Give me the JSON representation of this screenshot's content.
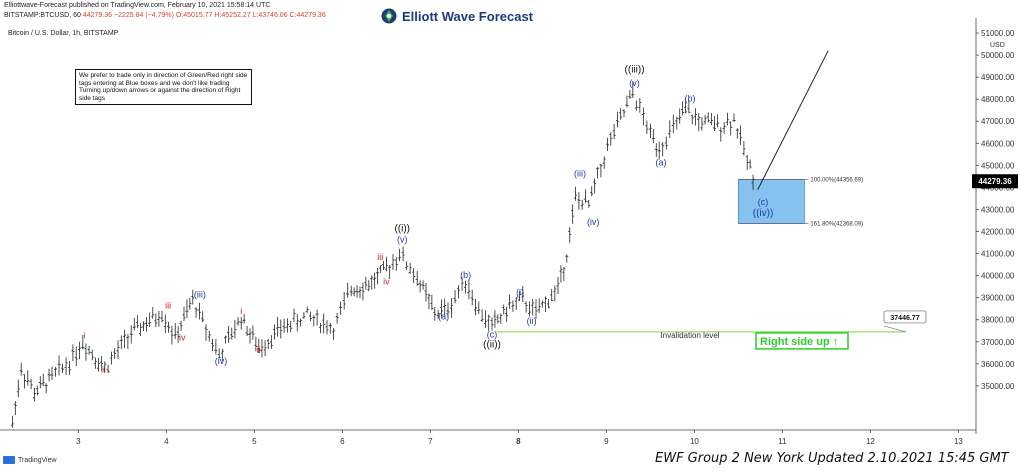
{
  "header": {
    "line1": "Elliottwave-Forecast published on TradingView.com, February 10, 2021 15:58:14 UTC",
    "line2_prefix": "BITSTAMP:BTCUSD, 60",
    "line2_values": "44279.36 −2225.84 (−4.79%) O:45015.77 H:45252.27 L:43746.06 C:44279.36"
  },
  "logo": {
    "text": "Elliott Wave Forecast",
    "icon": "ewf-logo-icon"
  },
  "chart_title": "Bitcoin / U.S. Dollar, 1h, BITSTAMP",
  "note": "We prefer to trade only in direction of Green/Red right side tags entering at Blue boxes and we don't like trading Turning up/down arrows or against the direction of Right side tags",
  "footer": "EWF Group 2 New York Updated 2.10.2021 15:45 GMT",
  "tradingview_label": "TradingView",
  "chart_data": {
    "type": "line",
    "symbol": "BTCUSD",
    "ylabel": "USD",
    "ylim": [
      33000,
      51500
    ],
    "xlim": [
      2.2,
      13.2
    ],
    "x_ticks": [
      "3",
      "4",
      "5",
      "6",
      "7",
      "8",
      "9",
      "10",
      "11",
      "12",
      "13"
    ],
    "y_ticks": [
      "35000.00",
      "36000.00",
      "37000.00",
      "38000.00",
      "39000.00",
      "40000.00",
      "41000.00",
      "42000.00",
      "43000.00",
      "44000.00",
      "45000.00",
      "46000.00",
      "47000.00",
      "48000.00",
      "49000.00",
      "50000.00",
      "51000.00"
    ],
    "price_path": [
      [
        2.25,
        33300
      ],
      [
        2.35,
        35800
      ],
      [
        2.5,
        34700
      ],
      [
        2.7,
        35400
      ],
      [
        2.9,
        36100
      ],
      [
        3.05,
        37000
      ],
      [
        3.3,
        35800
      ],
      [
        3.6,
        37400
      ],
      [
        3.95,
        38300
      ],
      [
        4.1,
        37200
      ],
      [
        4.3,
        38900
      ],
      [
        4.45,
        37600
      ],
      [
        4.6,
        36400
      ],
      [
        4.85,
        38100
      ],
      [
        5.05,
        36700
      ],
      [
        5.3,
        37600
      ],
      [
        5.6,
        38200
      ],
      [
        5.9,
        37600
      ],
      [
        6.1,
        39400
      ],
      [
        6.3,
        39600
      ],
      [
        6.5,
        40300
      ],
      [
        6.65,
        41000
      ],
      [
        6.85,
        39900
      ],
      [
        7.05,
        38300
      ],
      [
        7.2,
        38500
      ],
      [
        7.4,
        39800
      ],
      [
        7.55,
        38400
      ],
      [
        7.7,
        37700
      ],
      [
        7.9,
        38600
      ],
      [
        8.05,
        38900
      ],
      [
        8.2,
        38300
      ],
      [
        8.45,
        39400
      ],
      [
        8.55,
        41000
      ],
      [
        8.65,
        43500
      ],
      [
        8.8,
        43200
      ],
      [
        8.9,
        44500
      ],
      [
        9.05,
        46200
      ],
      [
        9.2,
        47400
      ],
      [
        9.3,
        48300
      ],
      [
        9.5,
        46400
      ],
      [
        9.6,
        45800
      ],
      [
        9.8,
        46900
      ],
      [
        9.9,
        47500
      ],
      [
        10.05,
        47000
      ],
      [
        10.3,
        46800
      ],
      [
        10.45,
        47100
      ],
      [
        10.6,
        45200
      ],
      [
        10.7,
        44279
      ]
    ],
    "wave_labels": [
      {
        "text": "i",
        "x": 3.07,
        "y": 37150,
        "color": "red"
      },
      {
        "text": "ii",
        "x": 3.28,
        "y": 35600,
        "color": "red"
      },
      {
        "text": "iii",
        "x": 4.02,
        "y": 38500,
        "color": "red"
      },
      {
        "text": "iv",
        "x": 4.18,
        "y": 37050,
        "color": "red"
      },
      {
        "text": "(iii)",
        "x": 4.38,
        "y": 39000,
        "color": "blue"
      },
      {
        "text": "(iv)",
        "x": 4.62,
        "y": 36000,
        "color": "blue"
      },
      {
        "text": "i",
        "x": 4.85,
        "y": 38250,
        "color": "red"
      },
      {
        "text": "ii",
        "x": 5.05,
        "y": 36500,
        "color": "red"
      },
      {
        "text": "iii",
        "x": 6.43,
        "y": 40700,
        "color": "red"
      },
      {
        "text": "iv",
        "x": 6.5,
        "y": 39600,
        "color": "red"
      },
      {
        "text": "(v)",
        "x": 6.68,
        "y": 41500,
        "color": "blue"
      },
      {
        "text": "((i))",
        "x": 6.68,
        "y": 42000,
        "color": "black"
      },
      {
        "text": "(a)",
        "x": 7.15,
        "y": 38000,
        "color": "blue"
      },
      {
        "text": "(b)",
        "x": 7.4,
        "y": 39900,
        "color": "blue"
      },
      {
        "text": "(c)",
        "x": 7.7,
        "y": 37200,
        "color": "blue"
      },
      {
        "text": "((ii))",
        "x": 7.7,
        "y": 36750,
        "color": "black"
      },
      {
        "text": "(i)",
        "x": 8.02,
        "y": 39100,
        "color": "blue"
      },
      {
        "text": "(ii)",
        "x": 8.15,
        "y": 37800,
        "color": "blue"
      },
      {
        "text": "(iii)",
        "x": 8.7,
        "y": 44500,
        "color": "blue"
      },
      {
        "text": "(iv)",
        "x": 8.85,
        "y": 42300,
        "color": "blue"
      },
      {
        "text": "((iii))",
        "x": 9.32,
        "y": 49200,
        "color": "black"
      },
      {
        "text": "(v)",
        "x": 9.32,
        "y": 48600,
        "color": "blue"
      },
      {
        "text": "(a)",
        "x": 9.62,
        "y": 45000,
        "color": "blue"
      },
      {
        "text": "(b)",
        "x": 9.95,
        "y": 47900,
        "color": "blue"
      },
      {
        "text": "(c)",
        "x": 10.78,
        "y": 43200,
        "color": "blue"
      },
      {
        "text": "((iv))",
        "x": 10.78,
        "y": 42700,
        "color": "blue"
      }
    ],
    "blue_box": {
      "x0": 10.5,
      "x1": 11.25,
      "y0": 42368.09,
      "y1": 44356.69
    },
    "fib_levels": [
      {
        "label": "100.00%(44356.69)",
        "value": 44356.69
      },
      {
        "label": "161.80%(42368.09)",
        "value": 42368.09
      }
    ],
    "projection_line": [
      [
        10.72,
        43900
      ],
      [
        11.52,
        50200
      ]
    ],
    "invalidation": {
      "value": 37446.77,
      "label": "Invalidation level",
      "value_label": "37446.77",
      "x_start": 7.75
    },
    "current_price": {
      "value": 44279.36,
      "label": "44279.36"
    },
    "right_side_tag": {
      "text": "Right side up",
      "arrow": "↑"
    },
    "colors": {
      "blue_box": "#86c2ef",
      "box_border": "#4a90c8",
      "invalidation": "#7cd83a",
      "tag_green": "#2fcc2f",
      "wave_blue": "#1f3aa8",
      "wave_red": "#d42020",
      "price_tag_bg": "#000000",
      "candle": "#222222",
      "grid": "#e8e8e8"
    },
    "grid": false
  }
}
